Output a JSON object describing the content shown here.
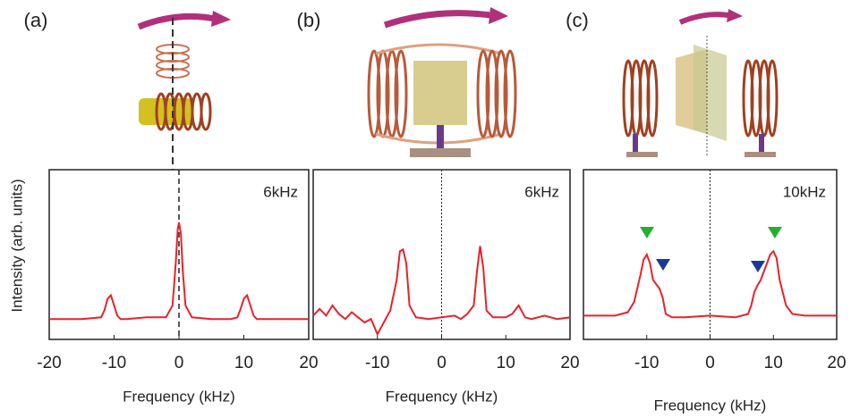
{
  "chart_data": [
    {
      "type": "line",
      "label": "(a)",
      "annotation": "6kHz",
      "x_label": "Frequency (kHz)",
      "y_label": "Intensity (arb. units)",
      "xlim": [
        -20,
        20
      ],
      "xticks": [
        -20,
        -10,
        0,
        10,
        20
      ],
      "ylim": [
        0,
        1
      ],
      "color": "#e8222a",
      "x": [
        -20,
        -15,
        -12,
        -11.5,
        -11,
        -10.5,
        -10,
        -9.5,
        -9,
        -8,
        -5,
        -2,
        -1,
        -0.5,
        -0.2,
        0,
        0.3,
        0.6,
        1,
        2,
        5,
        8,
        9,
        9.5,
        10,
        10.5,
        11,
        11.5,
        12,
        15,
        20
      ],
      "values": [
        0.12,
        0.12,
        0.13,
        0.17,
        0.24,
        0.26,
        0.2,
        0.14,
        0.12,
        0.12,
        0.13,
        0.13,
        0.2,
        0.45,
        0.65,
        0.69,
        0.62,
        0.4,
        0.2,
        0.13,
        0.12,
        0.12,
        0.13,
        0.18,
        0.24,
        0.26,
        0.2,
        0.14,
        0.12,
        0.12,
        0.12
      ]
    },
    {
      "type": "line",
      "label": "(b)",
      "annotation": "6kHz",
      "x_label": "Frequency (kHz)",
      "xlim": [
        -20,
        20
      ],
      "xticks": [
        -10,
        0,
        10,
        20
      ],
      "ylim": [
        0,
        1
      ],
      "color": "#e8222a",
      "x": [
        -20,
        -19,
        -18,
        -17,
        -16,
        -15,
        -14,
        -13,
        -12,
        -11,
        -10,
        -9,
        -8,
        -7,
        -6.5,
        -6,
        -5.5,
        -5,
        -4,
        -2,
        0,
        2,
        3,
        4,
        5,
        5.5,
        6,
        6.5,
        7,
        8,
        10,
        11,
        12,
        13,
        14,
        16,
        18,
        20
      ],
      "values": [
        0.14,
        0.18,
        0.14,
        0.2,
        0.15,
        0.12,
        0.16,
        0.13,
        0.1,
        0.12,
        0.03,
        0.1,
        0.17,
        0.35,
        0.52,
        0.53,
        0.45,
        0.2,
        0.13,
        0.12,
        0.13,
        0.14,
        0.12,
        0.15,
        0.2,
        0.4,
        0.55,
        0.42,
        0.17,
        0.13,
        0.13,
        0.15,
        0.2,
        0.13,
        0.12,
        0.14,
        0.12,
        0.13
      ]
    },
    {
      "type": "line",
      "label": "(c)",
      "annotation": "10kHz",
      "x_label": "Frequency (kHz)",
      "xlim": [
        -20,
        20
      ],
      "xticks": [
        -10,
        0,
        10,
        20
      ],
      "ylim": [
        0,
        1
      ],
      "color": "#e8222a",
      "x": [
        -20,
        -15,
        -13,
        -12,
        -11,
        -10.5,
        -10,
        -9.5,
        -9,
        -8,
        -7.5,
        -7,
        -6,
        -4,
        0,
        4,
        6,
        6.5,
        7,
        7.5,
        8,
        9,
        9.5,
        10,
        10.5,
        11,
        12,
        13,
        15,
        20
      ],
      "values": [
        0.14,
        0.14,
        0.16,
        0.22,
        0.38,
        0.47,
        0.5,
        0.45,
        0.35,
        0.3,
        0.25,
        0.15,
        0.13,
        0.13,
        0.14,
        0.13,
        0.15,
        0.2,
        0.28,
        0.32,
        0.35,
        0.45,
        0.5,
        0.52,
        0.48,
        0.35,
        0.2,
        0.15,
        0.14,
        0.14
      ]
    }
  ]
}
